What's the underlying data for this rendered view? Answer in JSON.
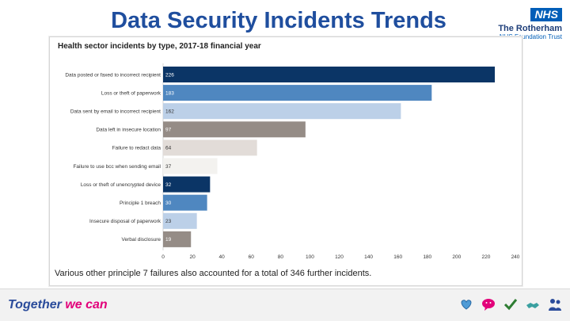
{
  "slide": {
    "title": "Data Security Incidents Trends"
  },
  "nhs": {
    "badge": "NHS",
    "trust_name": "The Rotherham",
    "foundation": "NHS Foundation Trust"
  },
  "chart_data": {
    "type": "bar",
    "orientation": "horizontal",
    "title": "Health sector incidents by type, 2017-18 financial year",
    "categories": [
      "Data posted or faxed to incorrect recipient",
      "Loss or theft of paperwork",
      "Data sent by email to incorrect recipient",
      "Data left in insecure location",
      "Failure to redact data",
      "Failure to use bcc when sending email",
      "Loss or theft of unencrypted device",
      "Principle 1 breach",
      "Insecure disposal of paperwork",
      "Verbal disclosure"
    ],
    "values": [
      226,
      183,
      162,
      97,
      64,
      37,
      32,
      30,
      23,
      19
    ],
    "value_labels": [
      "226",
      "183",
      "162",
      "97",
      "64",
      "37",
      "32",
      "30",
      "23",
      "19"
    ],
    "colors": [
      "#0b3566",
      "#4f87c0",
      "#bcd0e8",
      "#958c86",
      "#e2dcd8",
      "#f3f2ef",
      "#0b3566",
      "#4f87c0",
      "#bcd0e8",
      "#958c86"
    ],
    "xlim": [
      0,
      240
    ],
    "xticks": [
      0,
      20,
      40,
      60,
      80,
      100,
      120,
      140,
      160,
      180,
      200,
      220,
      240
    ],
    "footnote": "Various other principle 7 failures also accounted for a total of 346 further incidents."
  },
  "footer": {
    "brand_part1": "Together",
    "brand_part2": "we can",
    "icons": [
      "heart-hands-icon",
      "speech-bubble-icon",
      "checkmark-icon",
      "handshake-icon",
      "people-icon"
    ]
  }
}
